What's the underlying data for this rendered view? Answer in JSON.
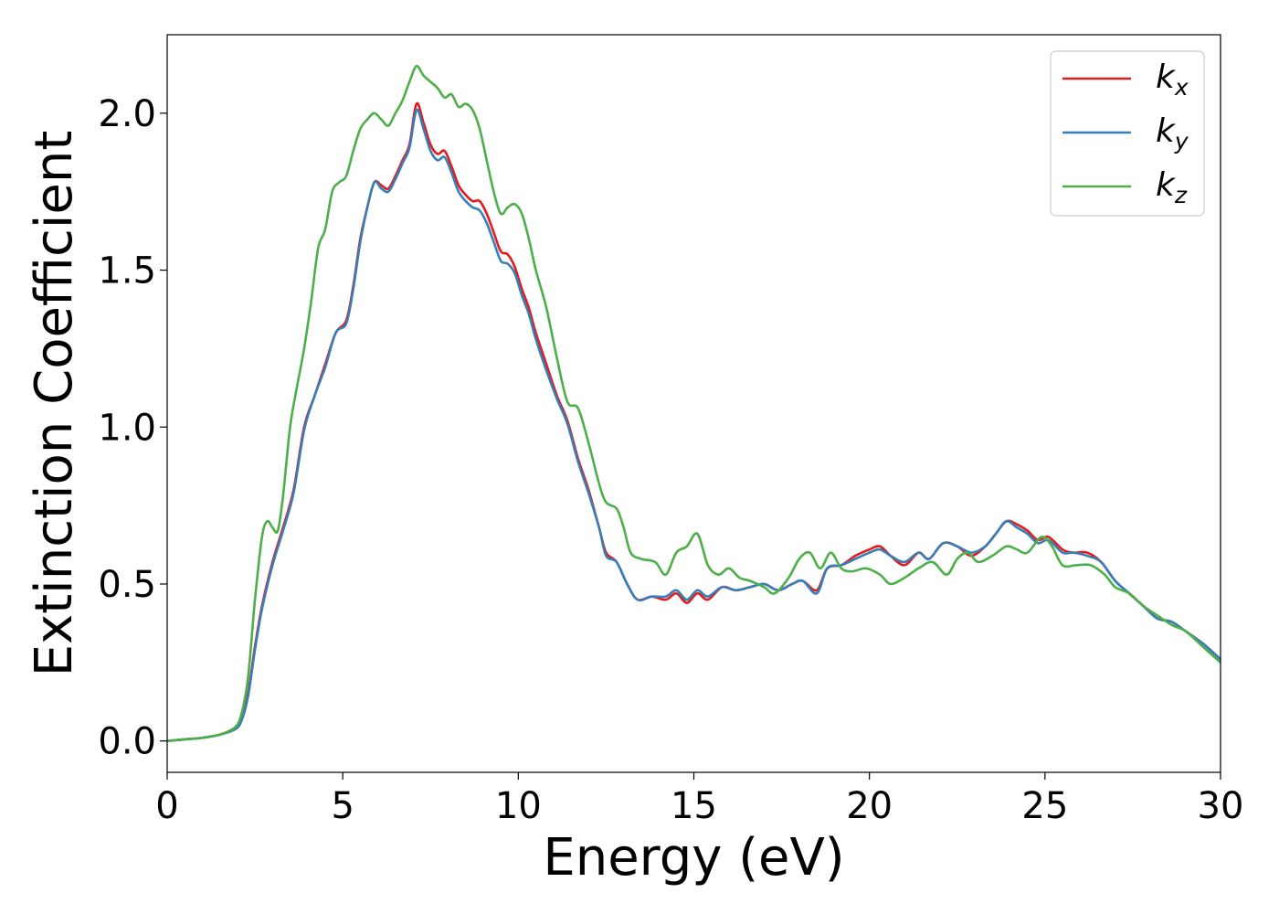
{
  "chart_data": {
    "type": "line",
    "xlabel": "Energy (eV)",
    "ylabel": "Extinction Coefficient",
    "xlim": [
      0,
      30
    ],
    "ylim": [
      -0.1,
      2.25
    ],
    "xticks": [
      "0",
      "5",
      "10",
      "15",
      "20",
      "25",
      "30"
    ],
    "yticks": [
      "0.0",
      "0.5",
      "1.0",
      "1.5",
      "2.0"
    ],
    "legend_position": "top-right",
    "grid": false,
    "series": [
      {
        "name": "k",
        "subscript": "x",
        "color": "#e41a1c",
        "points": [
          [
            0,
            0.0
          ],
          [
            0.5,
            0.005
          ],
          [
            1.0,
            0.01
          ],
          [
            1.5,
            0.02
          ],
          [
            1.9,
            0.04
          ],
          [
            2.1,
            0.07
          ],
          [
            2.3,
            0.15
          ],
          [
            2.5,
            0.3
          ],
          [
            2.7,
            0.43
          ],
          [
            3.0,
            0.57
          ],
          [
            3.3,
            0.68
          ],
          [
            3.6,
            0.8
          ],
          [
            3.9,
            1.0
          ],
          [
            4.2,
            1.1
          ],
          [
            4.5,
            1.2
          ],
          [
            4.8,
            1.3
          ],
          [
            5.1,
            1.34
          ],
          [
            5.3,
            1.45
          ],
          [
            5.5,
            1.6
          ],
          [
            5.7,
            1.7
          ],
          [
            5.9,
            1.78
          ],
          [
            6.1,
            1.77
          ],
          [
            6.3,
            1.76
          ],
          [
            6.5,
            1.8
          ],
          [
            6.7,
            1.85
          ],
          [
            6.9,
            1.9
          ],
          [
            7.1,
            2.03
          ],
          [
            7.3,
            1.97
          ],
          [
            7.5,
            1.9
          ],
          [
            7.7,
            1.87
          ],
          [
            7.9,
            1.88
          ],
          [
            8.1,
            1.83
          ],
          [
            8.3,
            1.77
          ],
          [
            8.5,
            1.74
          ],
          [
            8.7,
            1.72
          ],
          [
            8.9,
            1.72
          ],
          [
            9.1,
            1.68
          ],
          [
            9.3,
            1.62
          ],
          [
            9.5,
            1.56
          ],
          [
            9.7,
            1.55
          ],
          [
            9.9,
            1.51
          ],
          [
            10.1,
            1.44
          ],
          [
            10.3,
            1.38
          ],
          [
            10.5,
            1.3
          ],
          [
            10.8,
            1.2
          ],
          [
            11.1,
            1.1
          ],
          [
            11.4,
            1.02
          ],
          [
            11.7,
            0.9
          ],
          [
            12.0,
            0.8
          ],
          [
            12.3,
            0.68
          ],
          [
            12.5,
            0.6
          ],
          [
            12.8,
            0.57
          ],
          [
            13.1,
            0.5
          ],
          [
            13.4,
            0.45
          ],
          [
            13.8,
            0.46
          ],
          [
            14.2,
            0.45
          ],
          [
            14.5,
            0.47
          ],
          [
            14.8,
            0.44
          ],
          [
            15.1,
            0.47
          ],
          [
            15.4,
            0.45
          ],
          [
            15.8,
            0.49
          ],
          [
            16.2,
            0.48
          ],
          [
            16.6,
            0.49
          ],
          [
            17.0,
            0.5
          ],
          [
            17.4,
            0.48
          ],
          [
            17.8,
            0.5
          ],
          [
            18.1,
            0.51
          ],
          [
            18.5,
            0.48
          ],
          [
            18.8,
            0.55
          ],
          [
            19.2,
            0.56
          ],
          [
            19.6,
            0.59
          ],
          [
            20.0,
            0.61
          ],
          [
            20.3,
            0.62
          ],
          [
            20.6,
            0.59
          ],
          [
            21.0,
            0.56
          ],
          [
            21.4,
            0.6
          ],
          [
            21.7,
            0.58
          ],
          [
            22.1,
            0.63
          ],
          [
            22.5,
            0.62
          ],
          [
            22.9,
            0.59
          ],
          [
            23.3,
            0.62
          ],
          [
            23.6,
            0.66
          ],
          [
            23.9,
            0.7
          ],
          [
            24.2,
            0.69
          ],
          [
            24.5,
            0.67
          ],
          [
            24.8,
            0.64
          ],
          [
            25.1,
            0.65
          ],
          [
            25.5,
            0.61
          ],
          [
            25.8,
            0.6
          ],
          [
            26.2,
            0.6
          ],
          [
            26.6,
            0.57
          ],
          [
            27.0,
            0.51
          ],
          [
            27.4,
            0.47
          ],
          [
            27.8,
            0.43
          ],
          [
            28.2,
            0.39
          ],
          [
            28.6,
            0.38
          ],
          [
            29.0,
            0.35
          ],
          [
            29.5,
            0.31
          ],
          [
            30.0,
            0.26
          ]
        ]
      },
      {
        "name": "k",
        "subscript": "y",
        "color": "#377eb8",
        "points": [
          [
            0,
            0.0
          ],
          [
            0.5,
            0.005
          ],
          [
            1.0,
            0.01
          ],
          [
            1.5,
            0.02
          ],
          [
            1.9,
            0.035
          ],
          [
            2.1,
            0.06
          ],
          [
            2.3,
            0.14
          ],
          [
            2.5,
            0.29
          ],
          [
            2.7,
            0.42
          ],
          [
            3.0,
            0.56
          ],
          [
            3.3,
            0.67
          ],
          [
            3.6,
            0.79
          ],
          [
            3.9,
            0.99
          ],
          [
            4.2,
            1.1
          ],
          [
            4.5,
            1.19
          ],
          [
            4.8,
            1.3
          ],
          [
            5.1,
            1.33
          ],
          [
            5.3,
            1.44
          ],
          [
            5.5,
            1.59
          ],
          [
            5.7,
            1.7
          ],
          [
            5.9,
            1.78
          ],
          [
            6.1,
            1.76
          ],
          [
            6.3,
            1.75
          ],
          [
            6.5,
            1.79
          ],
          [
            6.7,
            1.84
          ],
          [
            6.9,
            1.89
          ],
          [
            7.1,
            2.01
          ],
          [
            7.3,
            1.95
          ],
          [
            7.5,
            1.88
          ],
          [
            7.7,
            1.85
          ],
          [
            7.9,
            1.86
          ],
          [
            8.1,
            1.81
          ],
          [
            8.3,
            1.75
          ],
          [
            8.5,
            1.72
          ],
          [
            8.7,
            1.7
          ],
          [
            8.9,
            1.69
          ],
          [
            9.1,
            1.65
          ],
          [
            9.3,
            1.59
          ],
          [
            9.5,
            1.53
          ],
          [
            9.7,
            1.52
          ],
          [
            9.9,
            1.49
          ],
          [
            10.1,
            1.42
          ],
          [
            10.3,
            1.36
          ],
          [
            10.5,
            1.28
          ],
          [
            10.8,
            1.18
          ],
          [
            11.1,
            1.09
          ],
          [
            11.4,
            1.01
          ],
          [
            11.7,
            0.89
          ],
          [
            12.0,
            0.79
          ],
          [
            12.3,
            0.68
          ],
          [
            12.5,
            0.59
          ],
          [
            12.8,
            0.57
          ],
          [
            13.1,
            0.5
          ],
          [
            13.4,
            0.45
          ],
          [
            13.8,
            0.46
          ],
          [
            14.2,
            0.46
          ],
          [
            14.5,
            0.48
          ],
          [
            14.8,
            0.45
          ],
          [
            15.1,
            0.48
          ],
          [
            15.4,
            0.46
          ],
          [
            15.8,
            0.49
          ],
          [
            16.2,
            0.48
          ],
          [
            16.6,
            0.49
          ],
          [
            17.0,
            0.5
          ],
          [
            17.4,
            0.48
          ],
          [
            17.8,
            0.5
          ],
          [
            18.1,
            0.51
          ],
          [
            18.5,
            0.47
          ],
          [
            18.8,
            0.55
          ],
          [
            19.2,
            0.56
          ],
          [
            19.6,
            0.58
          ],
          [
            20.0,
            0.6
          ],
          [
            20.3,
            0.61
          ],
          [
            20.6,
            0.59
          ],
          [
            21.0,
            0.57
          ],
          [
            21.4,
            0.6
          ],
          [
            21.7,
            0.58
          ],
          [
            22.1,
            0.63
          ],
          [
            22.5,
            0.62
          ],
          [
            22.9,
            0.6
          ],
          [
            23.3,
            0.62
          ],
          [
            23.6,
            0.66
          ],
          [
            23.9,
            0.7
          ],
          [
            24.2,
            0.68
          ],
          [
            24.5,
            0.66
          ],
          [
            24.8,
            0.63
          ],
          [
            25.1,
            0.64
          ],
          [
            25.5,
            0.6
          ],
          [
            25.8,
            0.6
          ],
          [
            26.2,
            0.59
          ],
          [
            26.6,
            0.57
          ],
          [
            27.0,
            0.51
          ],
          [
            27.4,
            0.47
          ],
          [
            27.8,
            0.43
          ],
          [
            28.2,
            0.39
          ],
          [
            28.6,
            0.38
          ],
          [
            29.0,
            0.35
          ],
          [
            29.5,
            0.31
          ],
          [
            30.0,
            0.26
          ]
        ]
      },
      {
        "name": "k",
        "subscript": "z",
        "color": "#4daf4a",
        "points": [
          [
            0,
            0.0
          ],
          [
            0.5,
            0.005
          ],
          [
            1.0,
            0.01
          ],
          [
            1.5,
            0.02
          ],
          [
            1.9,
            0.04
          ],
          [
            2.1,
            0.08
          ],
          [
            2.3,
            0.2
          ],
          [
            2.5,
            0.45
          ],
          [
            2.7,
            0.65
          ],
          [
            2.85,
            0.7
          ],
          [
            3.0,
            0.68
          ],
          [
            3.15,
            0.67
          ],
          [
            3.3,
            0.78
          ],
          [
            3.5,
            1.0
          ],
          [
            3.7,
            1.13
          ],
          [
            3.9,
            1.25
          ],
          [
            4.1,
            1.4
          ],
          [
            4.3,
            1.57
          ],
          [
            4.5,
            1.63
          ],
          [
            4.7,
            1.75
          ],
          [
            4.9,
            1.78
          ],
          [
            5.1,
            1.8
          ],
          [
            5.3,
            1.88
          ],
          [
            5.5,
            1.95
          ],
          [
            5.7,
            1.98
          ],
          [
            5.9,
            2.0
          ],
          [
            6.1,
            1.98
          ],
          [
            6.3,
            1.96
          ],
          [
            6.5,
            2.0
          ],
          [
            6.7,
            2.04
          ],
          [
            6.9,
            2.1
          ],
          [
            7.1,
            2.15
          ],
          [
            7.3,
            2.12
          ],
          [
            7.5,
            2.1
          ],
          [
            7.7,
            2.08
          ],
          [
            7.9,
            2.05
          ],
          [
            8.1,
            2.06
          ],
          [
            8.3,
            2.02
          ],
          [
            8.5,
            2.03
          ],
          [
            8.7,
            2.01
          ],
          [
            8.9,
            1.95
          ],
          [
            9.1,
            1.85
          ],
          [
            9.3,
            1.75
          ],
          [
            9.5,
            1.68
          ],
          [
            9.7,
            1.7
          ],
          [
            9.9,
            1.71
          ],
          [
            10.1,
            1.68
          ],
          [
            10.3,
            1.6
          ],
          [
            10.5,
            1.5
          ],
          [
            10.8,
            1.38
          ],
          [
            11.1,
            1.22
          ],
          [
            11.4,
            1.08
          ],
          [
            11.7,
            1.06
          ],
          [
            12.0,
            0.95
          ],
          [
            12.3,
            0.82
          ],
          [
            12.5,
            0.76
          ],
          [
            12.8,
            0.74
          ],
          [
            13.0,
            0.68
          ],
          [
            13.2,
            0.6
          ],
          [
            13.5,
            0.58
          ],
          [
            13.9,
            0.57
          ],
          [
            14.2,
            0.53
          ],
          [
            14.5,
            0.6
          ],
          [
            14.8,
            0.62
          ],
          [
            15.1,
            0.66
          ],
          [
            15.4,
            0.56
          ],
          [
            15.7,
            0.53
          ],
          [
            16.0,
            0.55
          ],
          [
            16.3,
            0.52
          ],
          [
            16.6,
            0.51
          ],
          [
            17.0,
            0.49
          ],
          [
            17.3,
            0.47
          ],
          [
            17.7,
            0.52
          ],
          [
            18.0,
            0.58
          ],
          [
            18.3,
            0.6
          ],
          [
            18.6,
            0.55
          ],
          [
            18.9,
            0.6
          ],
          [
            19.2,
            0.55
          ],
          [
            19.5,
            0.54
          ],
          [
            19.9,
            0.55
          ],
          [
            20.3,
            0.53
          ],
          [
            20.6,
            0.5
          ],
          [
            21.0,
            0.52
          ],
          [
            21.4,
            0.55
          ],
          [
            21.8,
            0.57
          ],
          [
            22.2,
            0.53
          ],
          [
            22.5,
            0.58
          ],
          [
            22.8,
            0.6
          ],
          [
            23.1,
            0.57
          ],
          [
            23.5,
            0.59
          ],
          [
            23.9,
            0.62
          ],
          [
            24.2,
            0.61
          ],
          [
            24.5,
            0.6
          ],
          [
            24.9,
            0.65
          ],
          [
            25.2,
            0.62
          ],
          [
            25.5,
            0.56
          ],
          [
            25.9,
            0.56
          ],
          [
            26.3,
            0.56
          ],
          [
            26.7,
            0.53
          ],
          [
            27.0,
            0.49
          ],
          [
            27.4,
            0.47
          ],
          [
            27.8,
            0.43
          ],
          [
            28.2,
            0.4
          ],
          [
            28.6,
            0.37
          ],
          [
            29.0,
            0.35
          ],
          [
            29.5,
            0.3
          ],
          [
            30.0,
            0.25
          ]
        ]
      }
    ]
  }
}
